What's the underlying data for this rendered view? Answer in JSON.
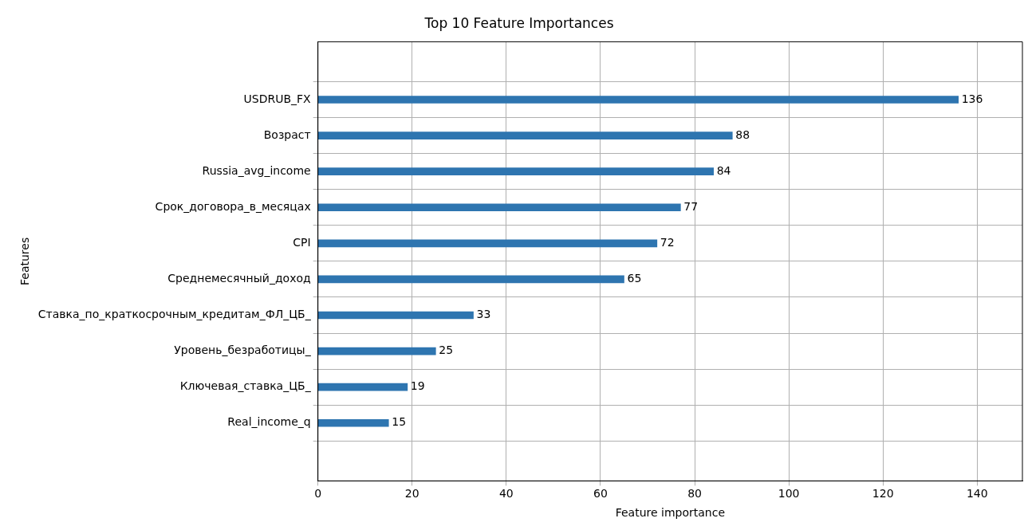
{
  "chart_data": {
    "type": "bar",
    "orientation": "horizontal",
    "title": "Top 10 Feature Importances",
    "xlabel": "Feature importance",
    "ylabel": "Features",
    "categories": [
      "USDRUB_FX",
      "Возраст",
      "Russia_avg_income",
      "Срок_договора_в_месяцах",
      "CPI",
      "Среднемесячный_доход",
      "Ставка_по_краткосрочным_кредитам_ФЛ_ЦБ_",
      "Уровень_безработицы_",
      "Ключевая_ставка_ЦБ_",
      "Real_income_q"
    ],
    "values": [
      136,
      88,
      84,
      77,
      72,
      65,
      33,
      25,
      19,
      15
    ],
    "color": "#2e75b0",
    "xlim": [
      0,
      149.6
    ],
    "xticks": [
      0,
      20,
      40,
      60,
      80,
      100,
      120,
      140
    ],
    "grid": true,
    "data_labels": true
  }
}
